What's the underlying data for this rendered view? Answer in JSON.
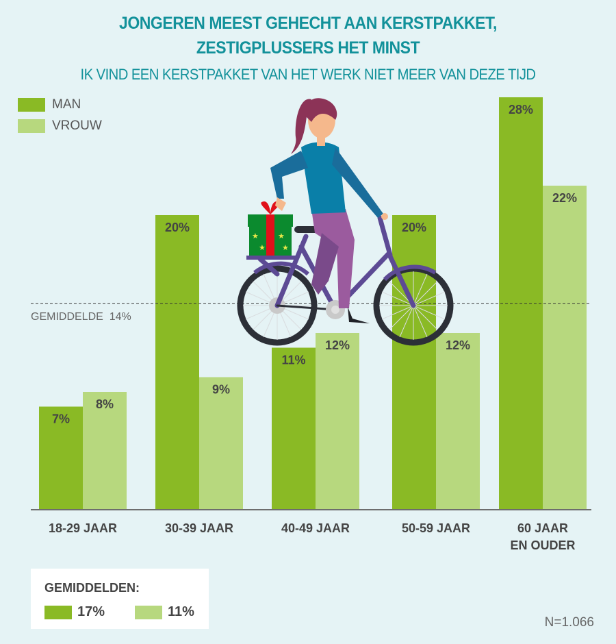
{
  "colors": {
    "background": "#e5f3f5",
    "title": "#12919a",
    "man": "#8aba25",
    "vrouw": "#b7d87e",
    "text_dark": "#444444",
    "text_gray": "#666666"
  },
  "header": {
    "title_line1": "JONGEREN MEEST GEHECHT AAN KERSTPAKKET,",
    "title_line2": "ZESTIGPLUSSERS HET MINST",
    "subtitle": "IK VIND EEN KERSTPAKKET VAN HET WERK NIET MEER VAN DEZE TIJD"
  },
  "legend": {
    "items": [
      {
        "label": "MAN",
        "color": "#8aba25"
      },
      {
        "label": "VROUW",
        "color": "#b7d87e"
      }
    ]
  },
  "averages_box": {
    "title": "GEMIDDELDEN:",
    "man": "17%",
    "vrouw": "11%"
  },
  "footnote": "N=1.066",
  "illustration": "woman-on-bicycle-with-gift-icon",
  "chart_data": {
    "type": "bar",
    "title": "JONGEREN MEEST GEHECHT AAN KERSTPAKKET, ZESTIGPLUSSERS HET MINST",
    "subtitle": "IK VIND EEN KERSTPAKKET VAN HET WERK NIET MEER VAN DEZE TIJD",
    "xlabel": "",
    "ylabel": "",
    "unit": "%",
    "categories": [
      "18-29 JAAR",
      "30-39 JAAR",
      "40-49 JAAR",
      "50-59 JAAR",
      "60 JAAR|EN OUDER"
    ],
    "series": [
      {
        "name": "MAN",
        "values": [
          7,
          20,
          11,
          20,
          28
        ]
      },
      {
        "name": "VROUW",
        "values": [
          8,
          9,
          12,
          12,
          22
        ]
      }
    ],
    "value_labels": {
      "MAN": [
        "7%",
        "20%",
        "11%",
        "20%",
        "28%"
      ],
      "VROUW": [
        "8%",
        "9%",
        "12%",
        "12%",
        "22%"
      ]
    },
    "reference_line": {
      "label": "GEMIDDELDE  14%",
      "value": 14
    },
    "ylim": [
      0,
      28
    ],
    "grid": false,
    "legend": "top-left"
  }
}
